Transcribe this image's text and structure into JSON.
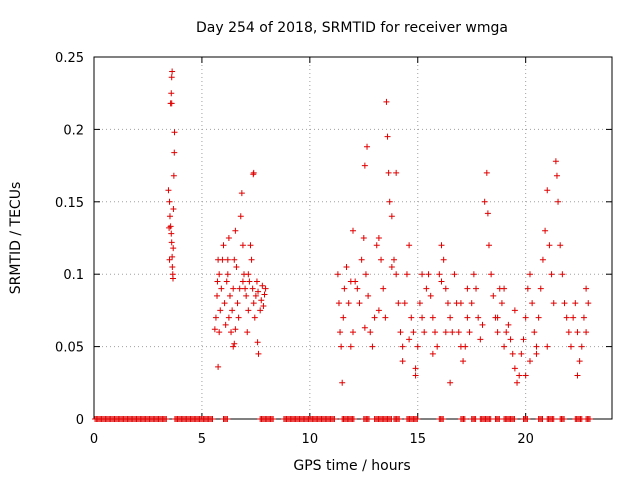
{
  "chart_data": {
    "type": "scatter",
    "title": "Day 254 of 2018, SRMTID for receiver wmga",
    "xlabel": "GPS time / hours",
    "ylabel": "SRMTID / TECUs",
    "xlim": [
      0,
      24
    ],
    "ylim": [
      0,
      0.25
    ],
    "xticks": [
      0,
      5,
      10,
      15,
      20
    ],
    "xtick_labels": [
      "0",
      "5",
      "10",
      "15",
      "20"
    ],
    "yticks": [
      0,
      0.05,
      0.1,
      0.15,
      0.2,
      0.25
    ],
    "ytick_labels": [
      "0",
      "0.05",
      "0.1",
      "0.15",
      "0.2",
      "0.25"
    ],
    "grid": true,
    "marker": "+",
    "series": [
      {
        "name": "SRMTID",
        "color": "#e00000",
        "points": [
          [
            3.45,
            0.158
          ],
          [
            3.5,
            0.15
          ],
          [
            3.52,
            0.14
          ],
          [
            3.55,
            0.133
          ],
          [
            3.58,
            0.128
          ],
          [
            3.6,
            0.122
          ],
          [
            3.62,
            0.112
          ],
          [
            3.63,
            0.105
          ],
          [
            3.65,
            0.1
          ],
          [
            3.66,
            0.097
          ],
          [
            3.67,
            0.118
          ],
          [
            3.68,
            0.145
          ],
          [
            3.7,
            0.168
          ],
          [
            3.72,
            0.184
          ],
          [
            3.73,
            0.198
          ],
          [
            3.55,
            0.218
          ],
          [
            3.6,
            0.218
          ],
          [
            3.58,
            0.225
          ],
          [
            3.6,
            0.236
          ],
          [
            3.62,
            0.24
          ],
          [
            3.5,
            0.11
          ],
          [
            3.48,
            0.132
          ],
          [
            5.6,
            0.062
          ],
          [
            5.65,
            0.07
          ],
          [
            5.7,
            0.085
          ],
          [
            5.72,
            0.095
          ],
          [
            5.75,
            0.036
          ],
          [
            5.8,
            0.06
          ],
          [
            5.85,
            0.075
          ],
          [
            5.9,
            0.09
          ],
          [
            5.95,
            0.11
          ],
          [
            6.0,
            0.12
          ],
          [
            6.05,
            0.08
          ],
          [
            6.1,
            0.065
          ],
          [
            6.15,
            0.095
          ],
          [
            6.2,
            0.1
          ],
          [
            6.25,
            0.07
          ],
          [
            6.3,
            0.085
          ],
          [
            6.35,
            0.06
          ],
          [
            6.4,
            0.075
          ],
          [
            6.45,
            0.09
          ],
          [
            6.5,
            0.11
          ],
          [
            6.55,
            0.13
          ],
          [
            6.6,
            0.105
          ],
          [
            6.65,
            0.08
          ],
          [
            6.7,
            0.07
          ],
          [
            6.75,
            0.09
          ],
          [
            6.8,
            0.14
          ],
          [
            6.85,
            0.156
          ],
          [
            6.9,
            0.12
          ],
          [
            6.95,
            0.1
          ],
          [
            7.0,
            0.09
          ],
          [
            7.05,
            0.085
          ],
          [
            7.1,
            0.06
          ],
          [
            7.15,
            0.075
          ],
          [
            7.2,
            0.095
          ],
          [
            7.25,
            0.12
          ],
          [
            7.3,
            0.11
          ],
          [
            7.35,
            0.09
          ],
          [
            7.4,
            0.08
          ],
          [
            7.45,
            0.07
          ],
          [
            7.5,
            0.085
          ],
          [
            7.55,
            0.095
          ],
          [
            7.58,
            0.053
          ],
          [
            7.6,
            0.088
          ],
          [
            7.62,
            0.045
          ],
          [
            7.7,
            0.075
          ],
          [
            7.75,
            0.082
          ],
          [
            7.8,
            0.092
          ],
          [
            7.85,
            0.078
          ],
          [
            7.9,
            0.086
          ],
          [
            7.95,
            0.09
          ],
          [
            6.45,
            0.05
          ],
          [
            6.5,
            0.052
          ],
          [
            6.55,
            0.062
          ],
          [
            7.38,
            0.169
          ],
          [
            7.4,
            0.17
          ],
          [
            6.25,
            0.125
          ],
          [
            6.2,
            0.11
          ],
          [
            6.9,
            0.095
          ],
          [
            7.15,
            0.1
          ],
          [
            5.75,
            0.11
          ],
          [
            5.8,
            0.1
          ],
          [
            11.3,
            0.1
          ],
          [
            11.35,
            0.08
          ],
          [
            11.4,
            0.06
          ],
          [
            11.45,
            0.05
          ],
          [
            11.5,
            0.025
          ],
          [
            11.55,
            0.07
          ],
          [
            11.6,
            0.09
          ],
          [
            11.7,
            0.105
          ],
          [
            11.8,
            0.08
          ],
          [
            11.9,
            0.05
          ],
          [
            12.0,
            0.06
          ],
          [
            12.1,
            0.095
          ],
          [
            12.2,
            0.09
          ],
          [
            12.3,
            0.08
          ],
          [
            12.4,
            0.11
          ],
          [
            12.5,
            0.125
          ],
          [
            12.55,
            0.063
          ],
          [
            12.6,
            0.1
          ],
          [
            12.65,
            0.188
          ],
          [
            12.7,
            0.085
          ],
          [
            12.8,
            0.06
          ],
          [
            12.9,
            0.05
          ],
          [
            13.0,
            0.07
          ],
          [
            13.1,
            0.12
          ],
          [
            13.2,
            0.125
          ],
          [
            13.3,
            0.11
          ],
          [
            13.4,
            0.09
          ],
          [
            13.5,
            0.07
          ],
          [
            13.55,
            0.219
          ],
          [
            13.6,
            0.195
          ],
          [
            13.65,
            0.17
          ],
          [
            13.7,
            0.15
          ],
          [
            13.8,
            0.14
          ],
          [
            13.9,
            0.11
          ],
          [
            14.0,
            0.1
          ],
          [
            14.1,
            0.08
          ],
          [
            14.2,
            0.06
          ],
          [
            14.3,
            0.05
          ],
          [
            14.4,
            0.08
          ],
          [
            14.5,
            0.1
          ],
          [
            14.6,
            0.12
          ],
          [
            14.7,
            0.07
          ],
          [
            14.8,
            0.06
          ],
          [
            14.9,
            0.035
          ],
          [
            15.0,
            0.05
          ],
          [
            15.1,
            0.08
          ],
          [
            15.2,
            0.07
          ],
          [
            15.3,
            0.06
          ],
          [
            15.4,
            0.09
          ],
          [
            15.5,
            0.1
          ],
          [
            15.6,
            0.085
          ],
          [
            15.7,
            0.07
          ],
          [
            15.8,
            0.06
          ],
          [
            15.9,
            0.05
          ],
          [
            16.0,
            0.1
          ],
          [
            16.1,
            0.12
          ],
          [
            16.2,
            0.11
          ],
          [
            16.3,
            0.09
          ],
          [
            16.4,
            0.08
          ],
          [
            16.5,
            0.07
          ],
          [
            16.6,
            0.06
          ],
          [
            16.7,
            0.1
          ],
          [
            16.8,
            0.08
          ],
          [
            16.9,
            0.06
          ],
          [
            17.0,
            0.05
          ],
          [
            17.1,
            0.04
          ],
          [
            17.2,
            0.05
          ],
          [
            17.3,
            0.07
          ],
          [
            17.4,
            0.06
          ],
          [
            17.5,
            0.08
          ],
          [
            17.6,
            0.1
          ],
          [
            17.7,
            0.09
          ],
          [
            17.8,
            0.07
          ],
          [
            17.9,
            0.055
          ],
          [
            18.0,
            0.065
          ],
          [
            18.1,
            0.15
          ],
          [
            18.2,
            0.17
          ],
          [
            18.25,
            0.142
          ],
          [
            18.3,
            0.12
          ],
          [
            18.4,
            0.1
          ],
          [
            18.5,
            0.085
          ],
          [
            18.6,
            0.07
          ],
          [
            18.7,
            0.06
          ],
          [
            18.8,
            0.09
          ],
          [
            18.9,
            0.08
          ],
          [
            19.0,
            0.05
          ],
          [
            19.1,
            0.06
          ],
          [
            19.2,
            0.065
          ],
          [
            19.3,
            0.055
          ],
          [
            19.4,
            0.045
          ],
          [
            19.5,
            0.035
          ],
          [
            19.6,
            0.025
          ],
          [
            19.7,
            0.03
          ],
          [
            19.8,
            0.045
          ],
          [
            19.9,
            0.055
          ],
          [
            20.0,
            0.07
          ],
          [
            20.1,
            0.09
          ],
          [
            20.2,
            0.1
          ],
          [
            20.3,
            0.08
          ],
          [
            20.4,
            0.06
          ],
          [
            20.5,
            0.05
          ],
          [
            20.6,
            0.07
          ],
          [
            20.7,
            0.09
          ],
          [
            20.8,
            0.11
          ],
          [
            20.9,
            0.13
          ],
          [
            21.0,
            0.158
          ],
          [
            21.1,
            0.12
          ],
          [
            21.2,
            0.1
          ],
          [
            21.3,
            0.08
          ],
          [
            21.4,
            0.178
          ],
          [
            21.45,
            0.168
          ],
          [
            21.5,
            0.15
          ],
          [
            21.6,
            0.12
          ],
          [
            21.7,
            0.1
          ],
          [
            21.8,
            0.08
          ],
          [
            21.9,
            0.07
          ],
          [
            22.0,
            0.06
          ],
          [
            22.1,
            0.05
          ],
          [
            22.2,
            0.07
          ],
          [
            22.3,
            0.08
          ],
          [
            22.4,
            0.06
          ],
          [
            22.5,
            0.04
          ],
          [
            22.6,
            0.05
          ],
          [
            22.7,
            0.07
          ],
          [
            22.8,
            0.09
          ],
          [
            22.9,
            0.08
          ],
          [
            12.55,
            0.175
          ],
          [
            14.0,
            0.17
          ],
          [
            13.8,
            0.105
          ],
          [
            15.2,
            0.1
          ],
          [
            16.1,
            0.095
          ],
          [
            16.3,
            0.06
          ],
          [
            17.0,
            0.08
          ],
          [
            17.3,
            0.09
          ],
          [
            19.0,
            0.09
          ],
          [
            19.5,
            0.075
          ],
          [
            20.0,
            0.03
          ],
          [
            20.2,
            0.04
          ],
          [
            20.5,
            0.045
          ],
          [
            21.0,
            0.05
          ],
          [
            22.4,
            0.03
          ],
          [
            22.8,
            0.06
          ],
          [
            14.6,
            0.055
          ],
          [
            15.7,
            0.045
          ],
          [
            16.5,
            0.025
          ],
          [
            18.7,
            0.07
          ],
          [
            13.2,
            0.075
          ],
          [
            12.0,
            0.13
          ],
          [
            11.9,
            0.095
          ],
          [
            14.3,
            0.04
          ],
          [
            14.9,
            0.03
          ]
        ]
      },
      {
        "name": "SRMTID zero",
        "color": "#e00000",
        "points": []
      }
    ],
    "zero_band_ranges": [
      [
        0.05,
        3.4
      ],
      [
        3.75,
        5.5
      ],
      [
        6.0,
        6.2
      ],
      [
        7.7,
        8.3
      ],
      [
        8.8,
        11.2
      ],
      [
        11.5,
        12.1
      ],
      [
        12.5,
        12.8
      ],
      [
        13.0,
        13.8
      ],
      [
        13.9,
        14.2
      ],
      [
        14.5,
        15.0
      ],
      [
        16.0,
        16.2
      ],
      [
        17.0,
        17.2
      ],
      [
        17.5,
        17.7
      ],
      [
        17.9,
        18.4
      ],
      [
        18.6,
        18.8
      ],
      [
        19.0,
        19.5
      ],
      [
        19.9,
        20.1
      ],
      [
        20.6,
        20.8
      ],
      [
        21.0,
        21.3
      ],
      [
        21.6,
        21.8
      ],
      [
        22.3,
        22.6
      ],
      [
        22.8,
        23.0
      ]
    ]
  }
}
